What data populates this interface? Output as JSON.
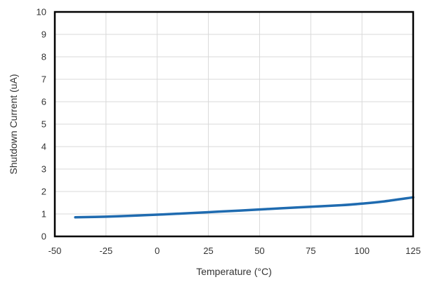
{
  "chart_data": {
    "type": "line",
    "title": "",
    "xlabel": "Temperature (°C)",
    "ylabel": "Shutdown Current (uA)",
    "xlim": [
      -50,
      125
    ],
    "ylim": [
      0,
      10
    ],
    "x_ticks": [
      -50,
      -25,
      0,
      25,
      50,
      75,
      100,
      125
    ],
    "y_ticks": [
      0,
      1,
      2,
      3,
      4,
      5,
      6,
      7,
      8,
      9,
      10
    ],
    "grid": true,
    "legend": "none",
    "series": [
      {
        "color": "#1f6bb0",
        "x": [
          -40,
          -25,
          -10,
          0,
          10,
          25,
          40,
          50,
          60,
          75,
          90,
          100,
          110,
          125
        ],
        "y": [
          0.85,
          0.88,
          0.93,
          0.97,
          1.01,
          1.08,
          1.15,
          1.2,
          1.25,
          1.32,
          1.39,
          1.46,
          1.55,
          1.74
        ]
      }
    ]
  }
}
